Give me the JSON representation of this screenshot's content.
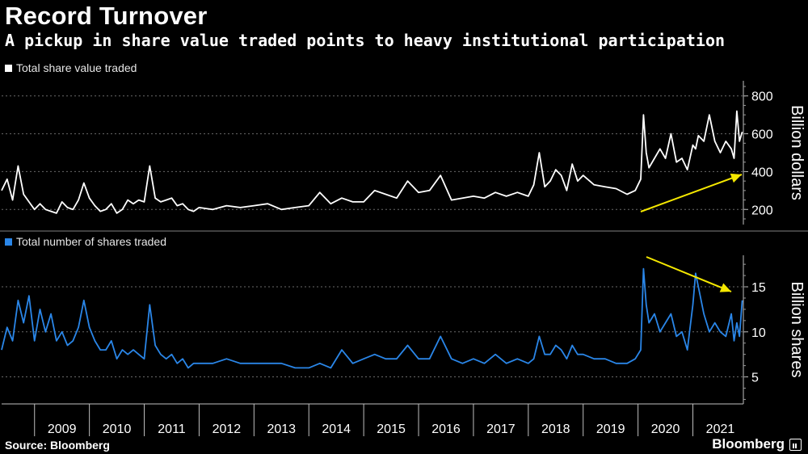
{
  "title": "Record Turnover",
  "subtitle": "A pickup in share value traded points to heavy institutional participation",
  "source": "Source: Bloomberg",
  "brand": "Bloomberg",
  "colors": {
    "background": "#000000",
    "value_series": "#ffffff",
    "shares_series": "#2a86e8",
    "annotation_arrow": "#f5e800",
    "gridline": "#6a6a6a"
  },
  "chart_data": [
    {
      "type": "line",
      "title": "",
      "legend": "Total share value traded",
      "ylabel": "Billion dollars",
      "ylim": [
        120,
        880
      ],
      "yticks": [
        200,
        400,
        600,
        800
      ],
      "xlim": [
        2008.4,
        2021.92
      ],
      "grid": true,
      "series": [
        {
          "name": "Total share value traded",
          "x": [
            2008.4,
            2008.5,
            2008.6,
            2008.7,
            2008.8,
            2008.9,
            2009.0,
            2009.1,
            2009.2,
            2009.3,
            2009.4,
            2009.5,
            2009.6,
            2009.7,
            2009.8,
            2009.9,
            2010.0,
            2010.1,
            2010.2,
            2010.3,
            2010.4,
            2010.5,
            2010.6,
            2010.7,
            2010.8,
            2010.9,
            2011.0,
            2011.1,
            2011.2,
            2011.3,
            2011.4,
            2011.5,
            2011.6,
            2011.7,
            2011.8,
            2011.9,
            2012.0,
            2012.25,
            2012.5,
            2012.75,
            2013.0,
            2013.25,
            2013.5,
            2013.75,
            2014.0,
            2014.2,
            2014.4,
            2014.6,
            2014.8,
            2015.0,
            2015.2,
            2015.4,
            2015.6,
            2015.8,
            2016.0,
            2016.2,
            2016.4,
            2016.6,
            2016.8,
            2017.0,
            2017.2,
            2017.4,
            2017.6,
            2017.8,
            2018.0,
            2018.1,
            2018.2,
            2018.3,
            2018.4,
            2018.5,
            2018.6,
            2018.7,
            2018.8,
            2018.9,
            2019.0,
            2019.2,
            2019.4,
            2019.6,
            2019.8,
            2019.95,
            2020.05,
            2020.1,
            2020.15,
            2020.2,
            2020.3,
            2020.4,
            2020.5,
            2020.6,
            2020.7,
            2020.8,
            2020.9,
            2021.0,
            2021.05,
            2021.1,
            2021.2,
            2021.3,
            2021.4,
            2021.5,
            2021.6,
            2021.7,
            2021.75,
            2021.8,
            2021.85,
            2021.9
          ],
          "values": [
            300,
            360,
            250,
            430,
            280,
            240,
            200,
            230,
            200,
            190,
            180,
            240,
            210,
            200,
            250,
            340,
            260,
            220,
            190,
            200,
            230,
            180,
            200,
            250,
            230,
            250,
            240,
            430,
            260,
            240,
            250,
            260,
            220,
            230,
            200,
            190,
            210,
            200,
            220,
            210,
            220,
            230,
            200,
            210,
            220,
            290,
            230,
            260,
            240,
            240,
            300,
            280,
            260,
            350,
            290,
            300,
            380,
            250,
            260,
            270,
            260,
            290,
            270,
            290,
            270,
            330,
            500,
            320,
            350,
            410,
            380,
            300,
            440,
            350,
            380,
            330,
            320,
            310,
            280,
            300,
            360,
            700,
            500,
            420,
            470,
            520,
            470,
            600,
            450,
            470,
            410,
            540,
            520,
            590,
            560,
            700,
            560,
            500,
            560,
            520,
            470,
            720,
            560,
            610
          ],
          "values_note": ""
        }
      ]
    },
    {
      "type": "line",
      "title": "",
      "legend": "Total number of shares traded",
      "ylabel": "Billion shares",
      "ylim": [
        2,
        18.5
      ],
      "yticks": [
        5,
        10,
        15
      ],
      "xlim": [
        2008.4,
        2021.92
      ],
      "grid": true,
      "xticks": [
        "2009",
        "2010",
        "2011",
        "2012",
        "2013",
        "2014",
        "2015",
        "2016",
        "2017",
        "2018",
        "2019",
        "2020",
        "2021"
      ],
      "series": [
        {
          "name": "Total number of shares traded",
          "x": [
            2008.4,
            2008.5,
            2008.6,
            2008.7,
            2008.8,
            2008.9,
            2009.0,
            2009.1,
            2009.2,
            2009.3,
            2009.4,
            2009.5,
            2009.6,
            2009.7,
            2009.8,
            2009.9,
            2010.0,
            2010.1,
            2010.2,
            2010.3,
            2010.4,
            2010.5,
            2010.6,
            2010.7,
            2010.8,
            2010.9,
            2011.0,
            2011.1,
            2011.2,
            2011.3,
            2011.4,
            2011.5,
            2011.6,
            2011.7,
            2011.8,
            2011.9,
            2012.0,
            2012.25,
            2012.5,
            2012.75,
            2013.0,
            2013.25,
            2013.5,
            2013.75,
            2014.0,
            2014.2,
            2014.4,
            2014.6,
            2014.8,
            2015.0,
            2015.2,
            2015.4,
            2015.6,
            2015.8,
            2016.0,
            2016.2,
            2016.4,
            2016.6,
            2016.8,
            2017.0,
            2017.2,
            2017.4,
            2017.6,
            2017.8,
            2018.0,
            2018.1,
            2018.2,
            2018.3,
            2018.4,
            2018.5,
            2018.6,
            2018.7,
            2018.8,
            2018.9,
            2019.0,
            2019.2,
            2019.4,
            2019.6,
            2019.8,
            2019.95,
            2020.05,
            2020.1,
            2020.15,
            2020.2,
            2020.3,
            2020.4,
            2020.5,
            2020.6,
            2020.7,
            2020.8,
            2020.9,
            2021.0,
            2021.05,
            2021.1,
            2021.2,
            2021.3,
            2021.4,
            2021.5,
            2021.6,
            2021.7,
            2021.75,
            2021.8,
            2021.85,
            2021.9
          ],
          "values": [
            8,
            10.5,
            9,
            13.5,
            11,
            14,
            9,
            12.5,
            10,
            12,
            9,
            10,
            8.5,
            9,
            10.5,
            13.5,
            10.5,
            9,
            8,
            8,
            9,
            7,
            8,
            7.5,
            8,
            7.5,
            7,
            13,
            8.5,
            7.5,
            7,
            7.5,
            6.5,
            7,
            6,
            6.5,
            6.5,
            6.5,
            7,
            6.5,
            6.5,
            6.5,
            6.5,
            6,
            6,
            6.5,
            6,
            8,
            6.5,
            7,
            7.5,
            7,
            7,
            8.5,
            7,
            7,
            9.5,
            7,
            6.5,
            7,
            6.5,
            7.5,
            6.5,
            7,
            6.5,
            7,
            9.5,
            7.5,
            7.5,
            8.5,
            8,
            7,
            8.5,
            7.5,
            7.5,
            7,
            7,
            6.5,
            6.5,
            7,
            8,
            17,
            13,
            11,
            12,
            10,
            11,
            12,
            9.5,
            10,
            8,
            13,
            16.5,
            15,
            12,
            10,
            11,
            10,
            9.5,
            12,
            9,
            11,
            9.5,
            13.5
          ],
          "values_note": ""
        }
      ]
    }
  ],
  "annotations": {
    "top_arrow": "rising",
    "bottom_arrow": "falling"
  }
}
